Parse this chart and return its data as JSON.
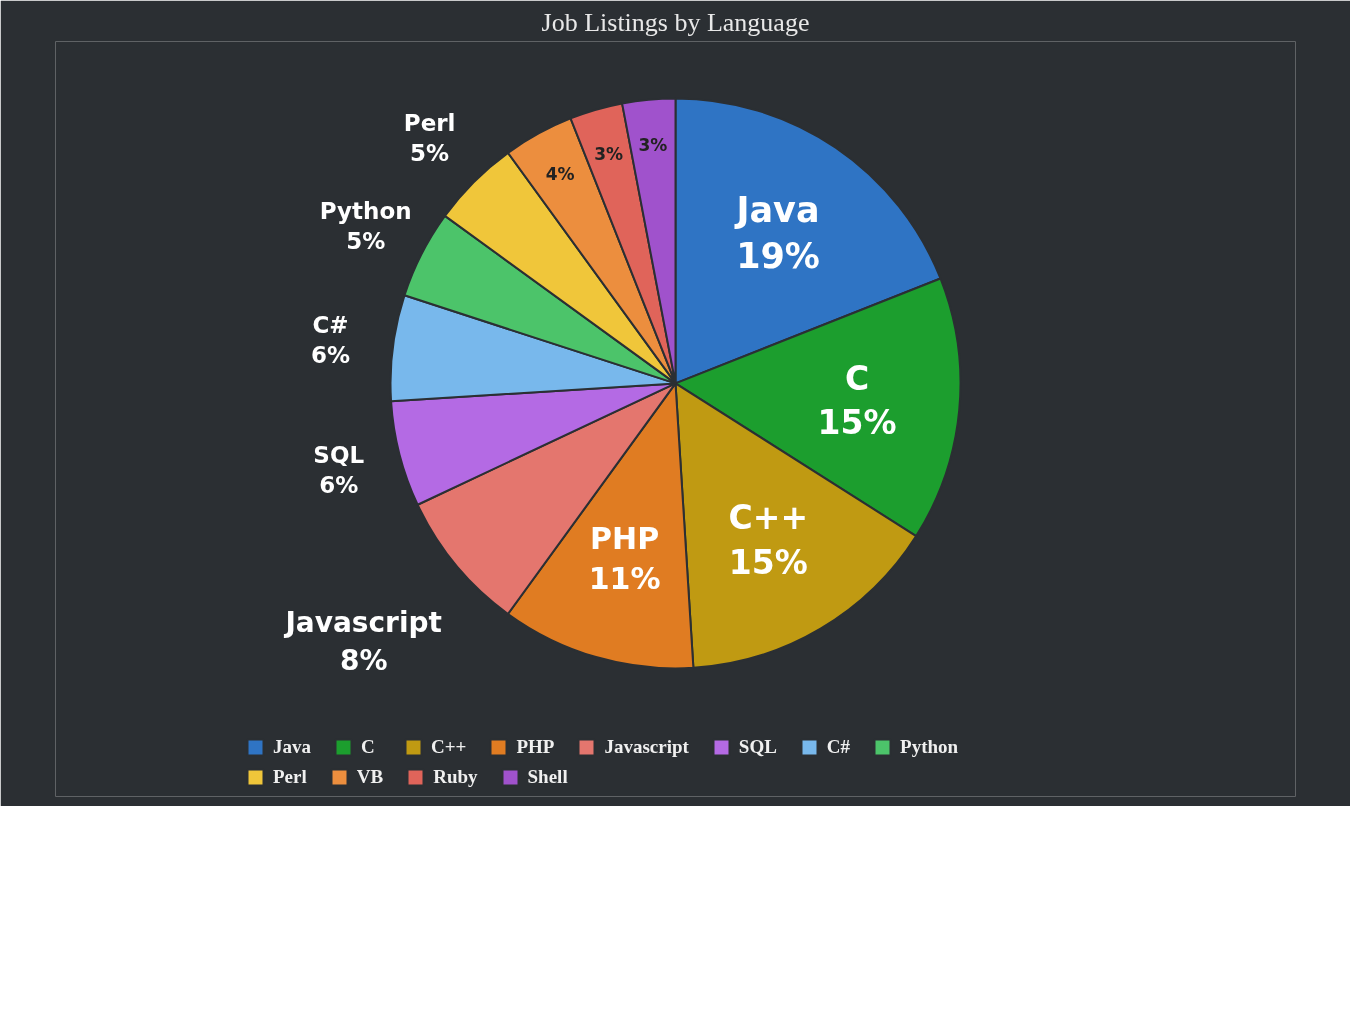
{
  "chart_data": {
    "type": "pie",
    "title": "Job Listings by Language",
    "categories": [
      "Java",
      "C",
      "C++",
      "PHP",
      "Javascript",
      "SQL",
      "C#",
      "Python",
      "Perl",
      "VB",
      "Ruby",
      "Shell"
    ],
    "values": [
      19,
      15,
      15,
      11,
      8,
      6,
      6,
      5,
      5,
      4,
      3,
      3
    ],
    "colors": [
      "#2f74c4",
      "#1c9e2e",
      "#c09a12",
      "#e07c22",
      "#e4766e",
      "#b46ae4",
      "#78b8ec",
      "#4cc46a",
      "#f0c63a",
      "#ec8e3e",
      "#e0645a",
      "#a052cc"
    ],
    "value_labels": [
      "Java\n19%",
      "C\n15%",
      "C++\n15%",
      "PHP\n11%",
      "Javascript\n8%",
      "SQL\n6%",
      "C#\n6%",
      "Python\n5%",
      "Perl\n5%",
      "4%",
      "3%",
      "3%"
    ],
    "legend": "bottom"
  }
}
